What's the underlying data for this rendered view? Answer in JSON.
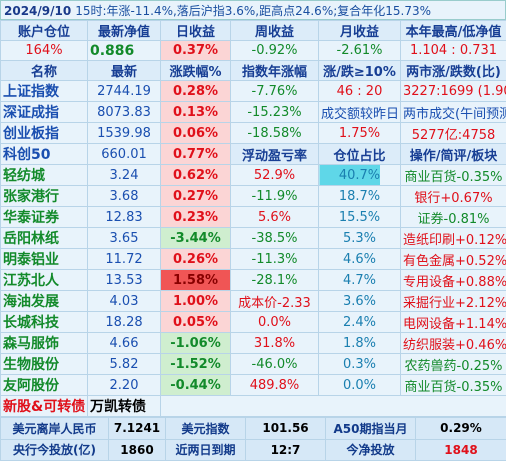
{
  "header": {
    "title": "2024/9/10",
    "summary": "15时:年涨-11.4%,落后沪指3.6%,距高点24.6%;复合年化15.73%"
  },
  "table": {
    "rows": [
      [
        "账户仓位",
        "最新净值",
        "日收益",
        "周收益",
        "月收益",
        "本年最高/低净值"
      ],
      [
        "164%",
        "0.886",
        "0.37%",
        "-0.92%",
        "-2.61%",
        "1.104 : 0.731"
      ],
      [
        "名称",
        "最新",
        "涨跌幅%",
        "指数年涨幅",
        "涨/跌≥10%",
        "两市涨/跌数(比)"
      ],
      [
        "上证指数",
        "2744.19",
        "0.28%",
        "-7.76%",
        "46 : 20",
        "3227:1699 (1.90)"
      ],
      [
        "深证成指",
        "8073.83",
        "0.13%",
        "-15.23%",
        "成交额较昨日",
        "两市成交(午间预测)"
      ],
      [
        "创业板指",
        "1539.98",
        "0.06%",
        "-18.58%",
        "1.75%",
        "5277亿:4758"
      ],
      [
        "科创50",
        "660.01",
        "0.77%",
        "浮动盈亏率",
        "仓位占比",
        "操作/简评/板块"
      ],
      [
        "轻纺城",
        "3.24",
        "0.62%",
        "52.9%",
        "40.7%",
        "商业百货-0.35%"
      ],
      [
        "张家港行",
        "3.68",
        "0.27%",
        "-11.9%",
        "18.7%",
        "银行+0.67%"
      ],
      [
        "华泰证券",
        "12.83",
        "0.23%",
        "5.6%",
        "15.5%",
        "证券-0.81%"
      ],
      [
        "岳阳林纸",
        "3.65",
        "-3.44%",
        "-38.5%",
        "5.3%",
        "造纸印刷+0.12%"
      ],
      [
        "明泰铝业",
        "11.72",
        "0.26%",
        "-11.3%",
        "4.6%",
        "有色金属+0.52%"
      ],
      [
        "江苏北人",
        "13.53",
        "1.58%",
        "-28.1%",
        "4.7%",
        "专用设备+0.88%"
      ],
      [
        "海油发展",
        "4.03",
        "1.00%",
        "成本价-2.33",
        "3.6%",
        "采掘行业+2.12%"
      ],
      [
        "长城科技",
        "18.28",
        "0.05%",
        "0.0%",
        "2.4%",
        "电网设备+1.14%"
      ],
      [
        "森马服饰",
        "4.66",
        "-1.06%",
        "31.8%",
        "1.8%",
        "纺织服装+0.46%"
      ],
      [
        "生物股份",
        "5.82",
        "-1.52%",
        "-46.0%",
        "0.3%",
        "农药兽药-0.25%"
      ],
      [
        "友阿股份",
        "2.20",
        "-0.44%",
        "489.8%",
        "0.0%",
        "商业百货-0.35%"
      ],
      [
        "新股&可转债",
        "万凯转债"
      ]
    ]
  },
  "footer": {
    "rows": [
      [
        "美元离岸人民币",
        "7.1241",
        "美元指数",
        "101.56",
        "A50期指当月",
        "0.29%"
      ],
      [
        "央行今投放(亿)",
        "1860",
        "近两日到期",
        "12:7",
        "今净投放",
        "1848"
      ]
    ]
  }
}
